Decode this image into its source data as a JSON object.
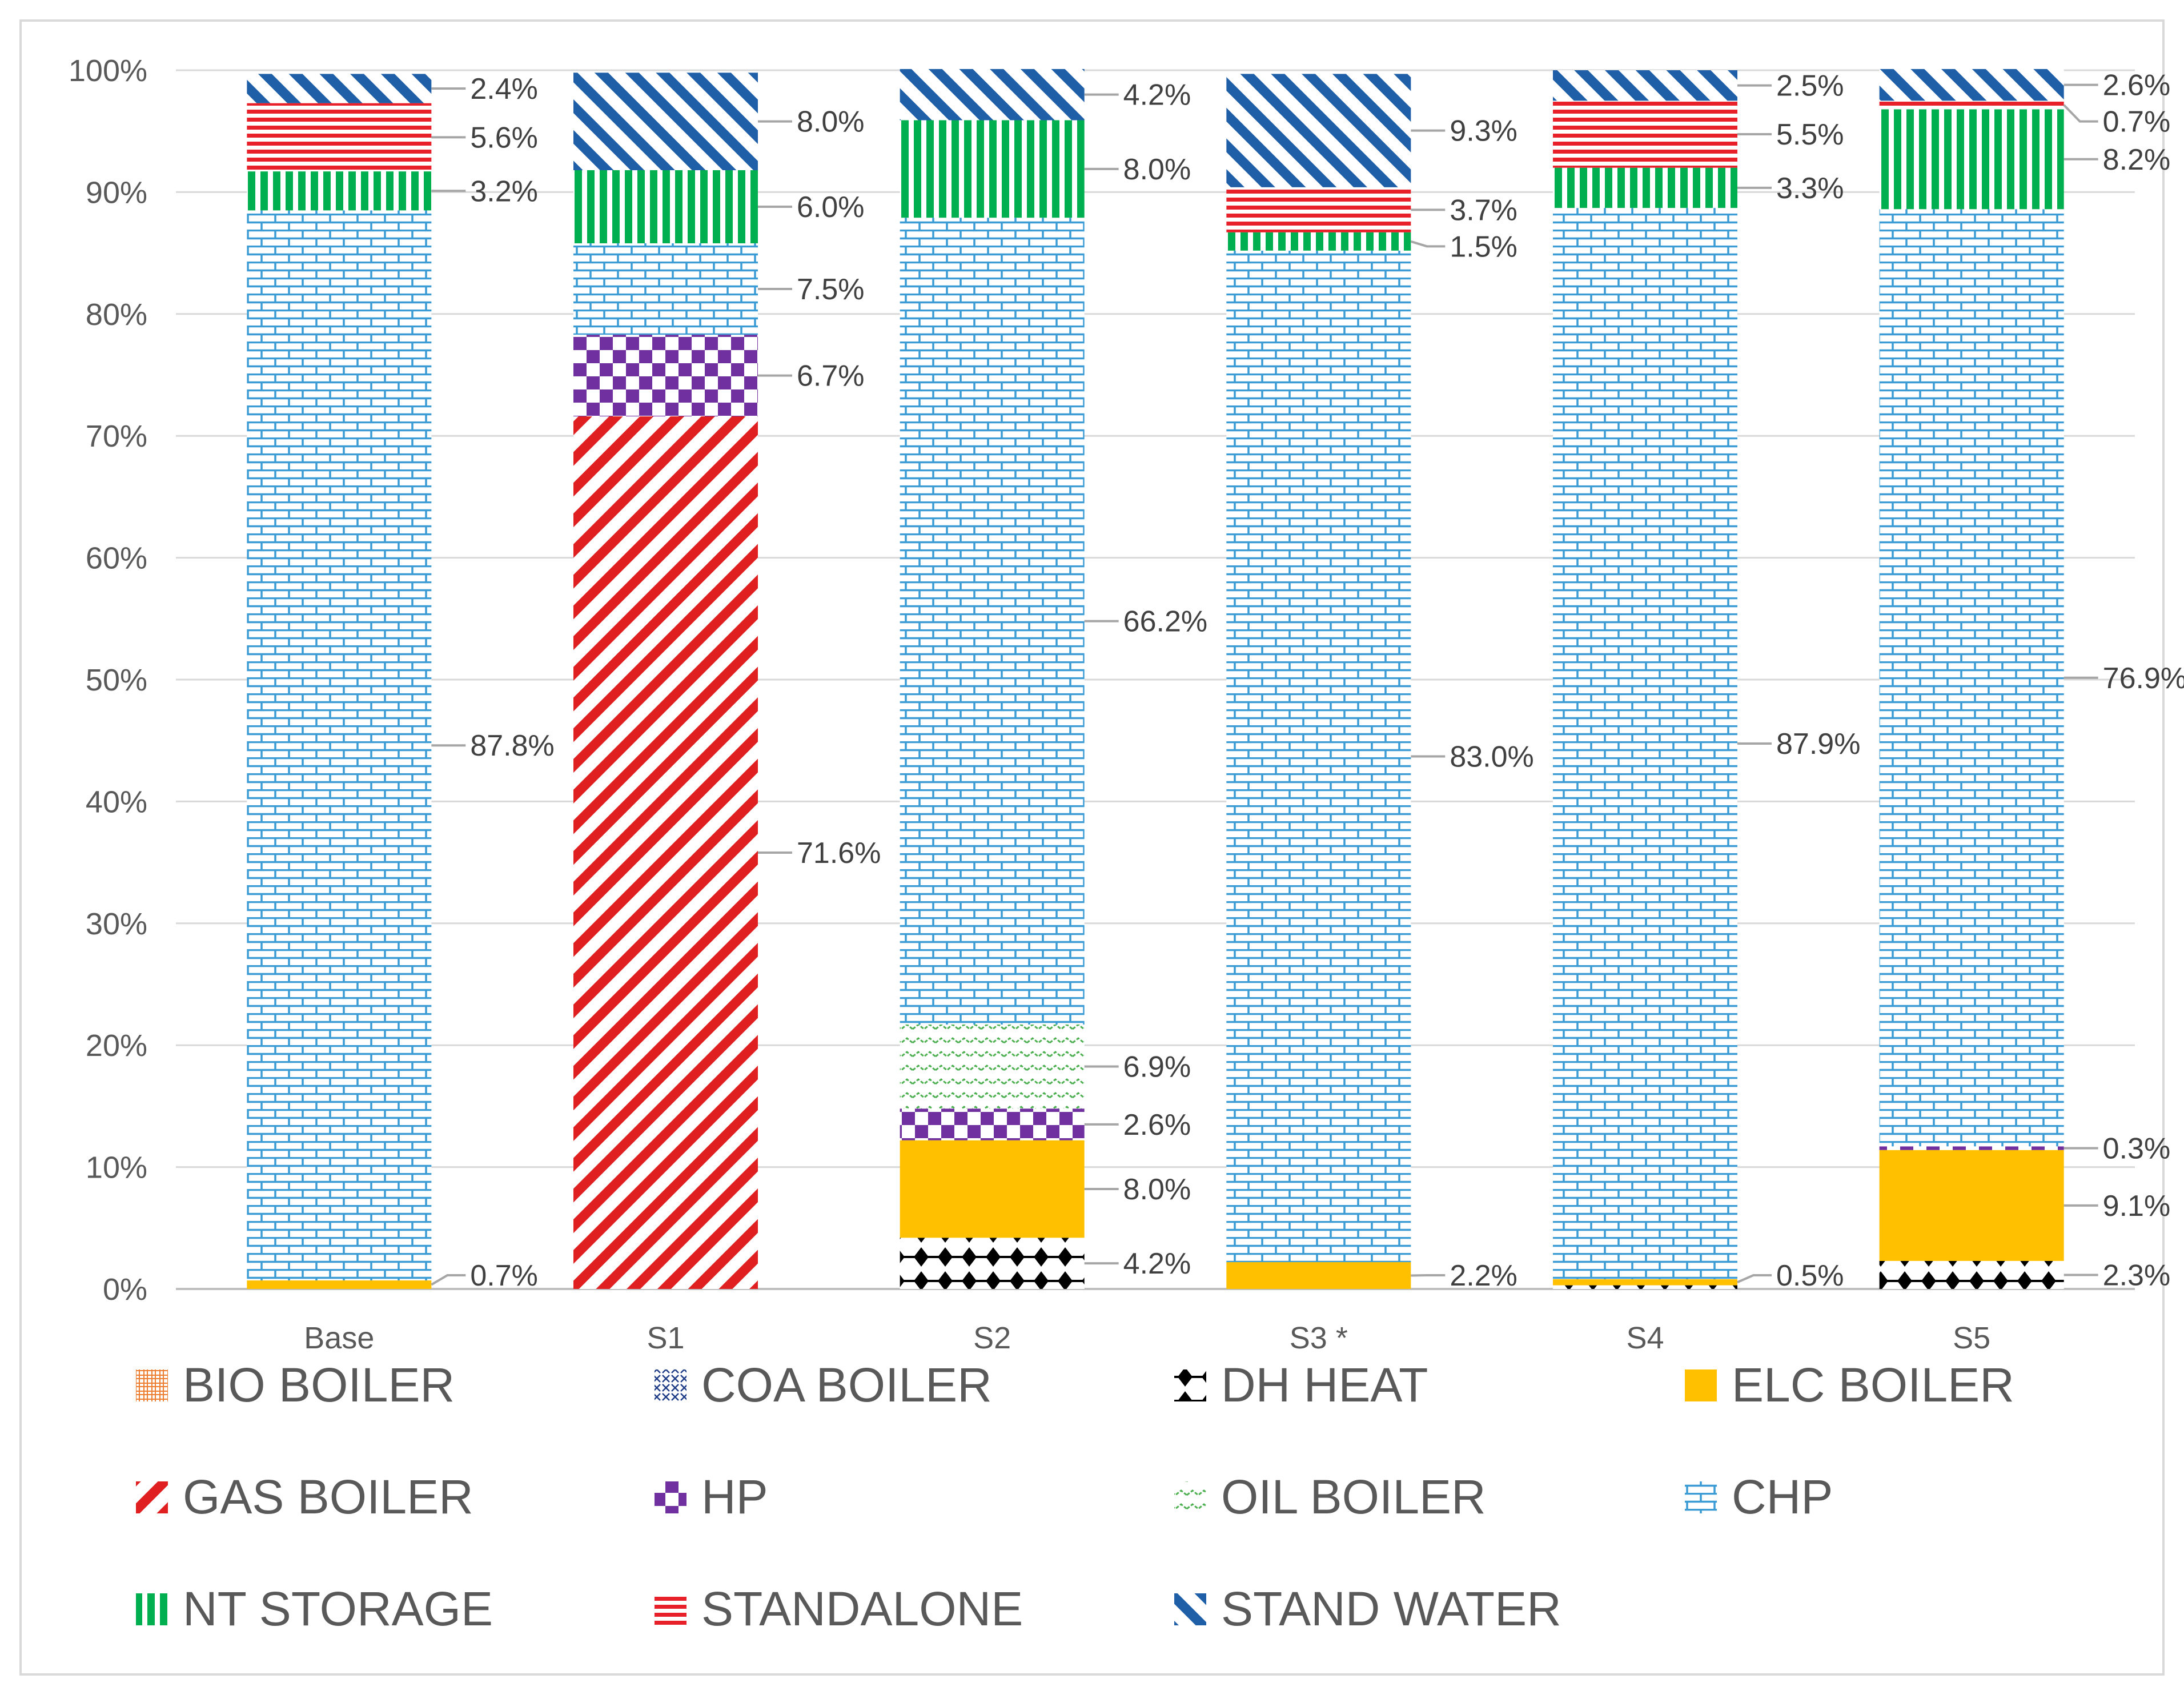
{
  "chart_data": {
    "type": "bar",
    "stacked": true,
    "percent": true,
    "title": "",
    "xlabel": "",
    "ylabel": "",
    "ylim": [
      0,
      100
    ],
    "yticks": [
      0,
      10,
      20,
      30,
      40,
      50,
      60,
      70,
      80,
      90,
      100
    ],
    "ytick_labels": [
      "0%",
      "10%",
      "20%",
      "30%",
      "40%",
      "50%",
      "60%",
      "70%",
      "80%",
      "90%",
      "100%"
    ],
    "grid": true,
    "legend_position": "bottom",
    "categories": [
      "Base",
      "S1",
      "S2",
      "S3 *",
      "S4",
      "S5"
    ],
    "series": [
      {
        "name": "BIO BOILER",
        "color": "#ed7d31",
        "pattern": "grid",
        "values": [
          0,
          0,
          0,
          0,
          0,
          0
        ],
        "labels": [
          "",
          "",
          "",
          "",
          "",
          ""
        ]
      },
      {
        "name": "COA BOILER",
        "color": "#1f3c88",
        "pattern": "cross",
        "values": [
          0,
          0,
          0,
          0,
          0,
          0
        ],
        "labels": [
          "",
          "",
          "",
          "",
          "",
          ""
        ]
      },
      {
        "name": "DH HEAT",
        "color": "#000000",
        "pattern": "diamond",
        "values": [
          0,
          0,
          4.2,
          0,
          0.3,
          2.3
        ],
        "labels": [
          "",
          "",
          "4.2%",
          "",
          "",
          "2.3%"
        ]
      },
      {
        "name": "ELC BOILER",
        "color": "#ffc000",
        "pattern": "solid",
        "values": [
          0.7,
          0,
          8.0,
          2.2,
          0.5,
          9.1
        ],
        "labels": [
          "0.7%",
          "",
          "8.0%",
          "2.2%",
          "0.5%",
          "9.1%"
        ]
      },
      {
        "name": "GAS BOILER",
        "color": "#e02020",
        "pattern": "diagonal-up",
        "values": [
          0,
          71.6,
          0,
          0,
          0,
          0
        ],
        "labels": [
          "",
          "71.6%",
          "",
          "",
          "",
          ""
        ]
      },
      {
        "name": "HP",
        "color": "#7030a0",
        "pattern": "checker",
        "values": [
          0,
          6.7,
          2.6,
          0,
          0,
          0.3
        ],
        "labels": [
          "",
          "6.7%",
          "2.6%",
          "",
          "",
          "0.3%"
        ]
      },
      {
        "name": "OIL BOILER",
        "color": "#4caf50",
        "pattern": "wave",
        "values": [
          0,
          0,
          6.9,
          0,
          0,
          0
        ],
        "labels": [
          "",
          "",
          "6.9%",
          "",
          "",
          ""
        ]
      },
      {
        "name": "CHP",
        "color": "#3a9bd5",
        "pattern": "brick",
        "values": [
          87.8,
          7.5,
          66.2,
          83.0,
          87.9,
          76.9
        ],
        "labels": [
          "87.8%",
          "7.5%",
          "66.2%",
          "83.0%",
          "87.9%",
          "76.9%"
        ]
      },
      {
        "name": "NT STORAGE",
        "color": "#00b050",
        "pattern": "vertical",
        "values": [
          3.2,
          6.0,
          8.0,
          1.5,
          3.3,
          8.2
        ],
        "labels": [
          "3.2%",
          "6.0%",
          "8.0%",
          "1.5%",
          "3.3%",
          "8.2%"
        ]
      },
      {
        "name": "STANDALONE",
        "color": "#e8202a",
        "pattern": "horizontal",
        "values": [
          5.6,
          0,
          0,
          3.7,
          5.5,
          0.7
        ],
        "labels": [
          "5.6%",
          "",
          "",
          "3.7%",
          "5.5%",
          "0.7%"
        ]
      },
      {
        "name": "STAND WATER",
        "color": "#1f5fa8",
        "pattern": "diagonal-down",
        "values": [
          2.4,
          8.0,
          4.2,
          9.3,
          2.5,
          2.6
        ],
        "labels": [
          "2.4%",
          "8.0%",
          "4.2%",
          "9.3%",
          "2.5%",
          "2.6%"
        ]
      }
    ]
  }
}
